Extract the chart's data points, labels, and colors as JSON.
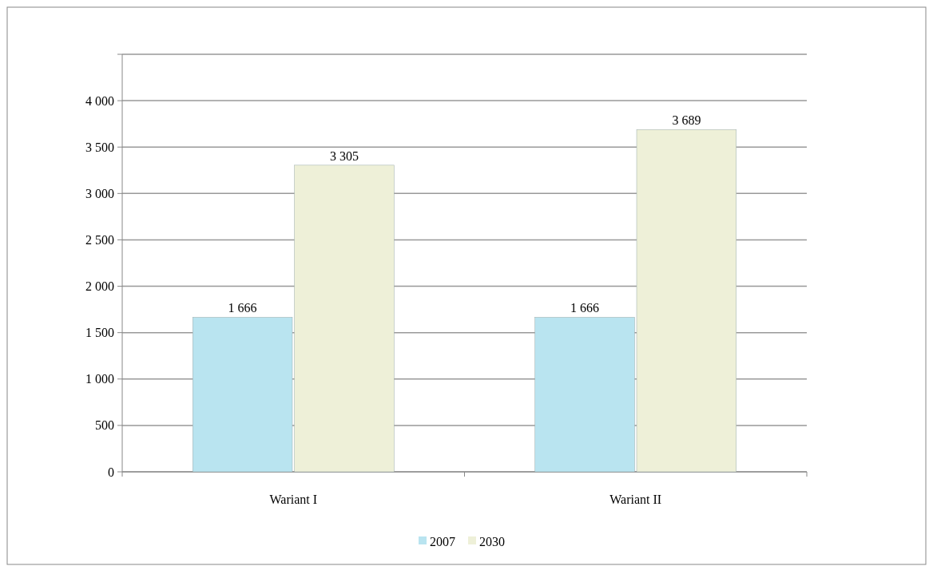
{
  "chart_data": {
    "type": "bar",
    "categories": [
      "Wariant I",
      "Wariant II"
    ],
    "series": [
      {
        "name": "2007",
        "color": "#b9e4f0",
        "values": [
          1666,
          1666
        ],
        "value_labels": [
          "1 666",
          "1 666"
        ]
      },
      {
        "name": "2030",
        "color": "#eef0d8",
        "values": [
          3305,
          3689
        ],
        "value_labels": [
          "3 305",
          "3 689"
        ]
      }
    ],
    "ylim": [
      0,
      4500
    ],
    "yticks": [
      {
        "value": 0,
        "label": "0"
      },
      {
        "value": 500,
        "label": "500"
      },
      {
        "value": 1000,
        "label": "1 000"
      },
      {
        "value": 1500,
        "label": "1 500"
      },
      {
        "value": 2000,
        "label": "2 000"
      },
      {
        "value": 2500,
        "label": "2 500"
      },
      {
        "value": 3000,
        "label": "3 000"
      },
      {
        "value": 3500,
        "label": "3 500"
      },
      {
        "value": 4000,
        "label": "4 000"
      },
      {
        "value": 4500,
        "label": null
      }
    ],
    "grid": "y",
    "legend": "bottom"
  }
}
